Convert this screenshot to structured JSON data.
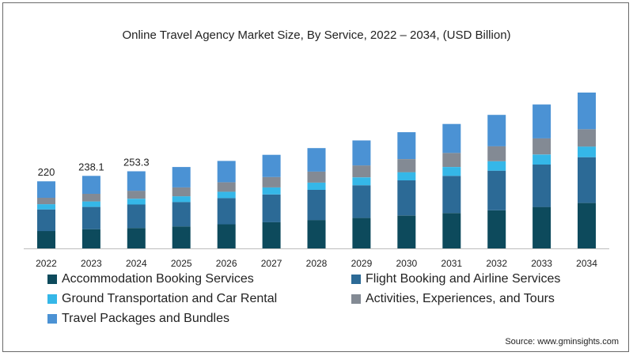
{
  "chart_data": {
    "type": "bar",
    "stacked": true,
    "title": "Online Travel Agency Market Size, By Service, 2022 – 2034, (USD Billion)",
    "xlabel": "",
    "ylabel": "",
    "categories": [
      "2022",
      "2023",
      "2024",
      "2025",
      "2026",
      "2027",
      "2028",
      "2029",
      "2030",
      "2031",
      "2032",
      "2033",
      "2034"
    ],
    "totals_labels": [
      "220",
      "238.1",
      "253.3",
      "",
      "",
      "",
      "",
      "",
      "",
      "",
      "",
      "",
      ""
    ],
    "ylim": [
      0,
      620
    ],
    "grid": false,
    "legend_position": "bottom",
    "series": [
      {
        "name": "Accommodation Booking Services",
        "color": "#0d4a5c",
        "values": [
          57,
          63,
          67,
          72,
          79,
          86,
          93,
          100,
          108,
          116,
          125,
          136,
          149
        ]
      },
      {
        "name": "Flight Booking and Airline Services",
        "color": "#2c6a96",
        "values": [
          71,
          73,
          77,
          80,
          86,
          91,
          99,
          107,
          115,
          122,
          130,
          139,
          150
        ]
      },
      {
        "name": "Ground Transportation and Car Rental",
        "color": "#35b7e8",
        "values": [
          17,
          18,
          19,
          19,
          21,
          23,
          24,
          26,
          27,
          29,
          31,
          33,
          35
        ]
      },
      {
        "name": "Activities, Experiences, and Tours",
        "color": "#838a94",
        "values": [
          21,
          25,
          26,
          29,
          31,
          34,
          36,
          39,
          43,
          46,
          49,
          53,
          57
        ]
      },
      {
        "name": "Travel Packages and Bundles",
        "color": "#4b92d4",
        "values": [
          54,
          59,
          64,
          67,
          70,
          73,
          77,
          82,
          88,
          95,
          103,
          111,
          120
        ]
      }
    ]
  },
  "source": "Source: www.gminsights.com"
}
